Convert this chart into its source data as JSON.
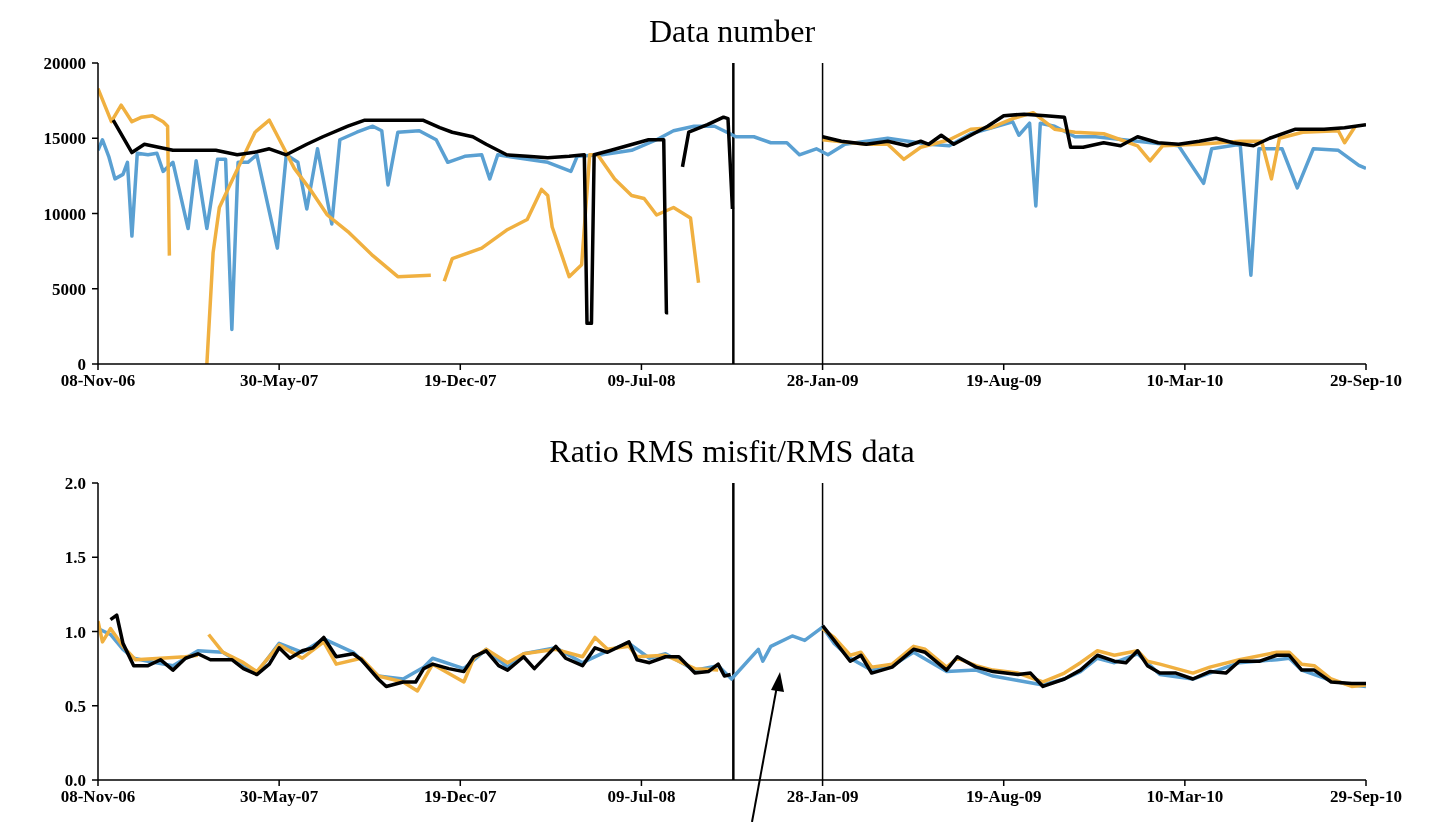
{
  "chart_data": [
    {
      "type": "line",
      "title": "Data number",
      "xlim": [
        "2006-11-08",
        "2010-09-29"
      ],
      "xticks": [
        {
          "value": "2006-11-08",
          "label": "08-Nov-06"
        },
        {
          "value": "2007-05-30",
          "label": "30-May-07"
        },
        {
          "value": "2007-12-19",
          "label": "19-Dec-07"
        },
        {
          "value": "2008-07-09",
          "label": "09-Jul-08"
        },
        {
          "value": "2009-01-28",
          "label": "28-Jan-09"
        },
        {
          "value": "2009-08-19",
          "label": "19-Aug-09"
        },
        {
          "value": "2010-03-10",
          "label": "10-Mar-10"
        },
        {
          "value": "2010-09-29",
          "label": "29-Sep-10"
        }
      ],
      "ylim": [
        0,
        20000
      ],
      "yticks": [
        0,
        5000,
        10000,
        15000,
        20000
      ],
      "ref_lines": [
        {
          "axis": "x",
          "value": "2008-10-20",
          "color": "#000000"
        },
        {
          "axis": "x",
          "value": "2009-01-28",
          "color": "#000000"
        }
      ],
      "series": [
        {
          "color": "#5aa0d2",
          "x": [
            "2006-11-08",
            "2006-11-13",
            "2006-11-20",
            "2006-11-27",
            "2006-12-06",
            "2006-12-11",
            "2006-12-16",
            "2006-12-22",
            "2007-01-03",
            "2007-01-13",
            "2007-01-20",
            "2007-01-31",
            "2007-02-17",
            "2007-02-26",
            "2007-03-10",
            "2007-03-22",
            "2007-03-31",
            "2007-04-07",
            "2007-04-14",
            "2007-04-25",
            "2007-05-05",
            "2007-05-28",
            "2007-06-07",
            "2007-06-20",
            "2007-06-30",
            "2007-07-12",
            "2007-07-28",
            "2007-08-06",
            "2007-08-25",
            "2007-09-12",
            "2007-09-22",
            "2007-09-29",
            "2007-10-10",
            "2007-11-03",
            "2007-11-22",
            "2007-12-05",
            "2007-12-24",
            "2008-01-12",
            "2008-01-21",
            "2008-01-30",
            "2008-03-03",
            "2008-03-26",
            "2008-04-21",
            "2008-04-28",
            "2008-05-26",
            "2008-06-28",
            "2008-07-26",
            "2008-08-14",
            "2008-09-06",
            "2008-09-29",
            "2008-10-23",
            "2008-11-12",
            "2008-12-01",
            "2008-12-19",
            "2009-01-02",
            "2009-01-21",
            "2009-02-03",
            "2009-02-22",
            "2009-04-11",
            "2009-05-27",
            "2009-06-19",
            "2009-07-13",
            "2009-08-29",
            "2009-09-05",
            "2009-09-17",
            "2009-09-24",
            "2009-09-29",
            "2009-10-15",
            "2009-11-07",
            "2009-11-30",
            "2010-01-16",
            "2010-03-03",
            "2010-03-31",
            "2010-04-09",
            "2010-05-11",
            "2010-05-23",
            "2010-06-01",
            "2010-06-27",
            "2010-07-14",
            "2010-08-01",
            "2010-08-29",
            "2010-09-21",
            "2010-09-29"
          ],
          "values": [
            14200,
            14900,
            13800,
            12300,
            12600,
            13400,
            8500,
            14000,
            13900,
            14000,
            12800,
            13400,
            9000,
            13500,
            9000,
            13600,
            13600,
            2300,
            13400,
            13400,
            13900,
            7700,
            13900,
            13400,
            10300,
            14300,
            9300,
            14900,
            15400,
            15800,
            15500,
            11900,
            15400,
            15500,
            14900,
            13400,
            13800,
            13900,
            12300,
            13900,
            13600,
            13400,
            12800,
            13800,
            13900,
            14200,
            14900,
            15500,
            15800,
            15800,
            15100,
            15100,
            14700,
            14700,
            13900,
            14300,
            13900,
            14600,
            15000,
            14600,
            14500,
            15300,
            16100,
            15200,
            16000,
            10500,
            16000,
            15800,
            15100,
            15100,
            14800,
            14500,
            12000,
            14300,
            14600,
            5900,
            14300,
            14300,
            11700,
            14300,
            14200,
            13200,
            13000
          ]
        },
        {
          "color": "#f0b040",
          "x": [
            "2006-11-08",
            "2006-11-23",
            "2006-12-04",
            "2006-12-16",
            "2006-12-27",
            "2007-01-08",
            "2007-01-20",
            "2007-01-25",
            "2007-01-27",
            "2007-02-15",
            "2007-03-10",
            "2007-03-17",
            "2007-03-24",
            "2007-04-08",
            "2007-04-21",
            "2007-05-03",
            "2007-05-19",
            "2007-06-02",
            "2007-06-16",
            "2007-07-05",
            "2007-07-23",
            "2007-08-15",
            "2007-09-12",
            "2007-10-10",
            "2007-11-16",
            "2007-11-24",
            "2007-12-01",
            "2007-12-10",
            "2008-01-12",
            "2008-02-09",
            "2008-03-03",
            "2008-03-19",
            "2008-03-26",
            "2008-03-31",
            "2008-04-19",
            "2008-05-03",
            "2008-05-12",
            "2008-05-21",
            "2008-06-09",
            "2008-06-28",
            "2008-07-12",
            "2008-07-26",
            "2008-08-14",
            "2008-09-02",
            "2008-09-11",
            "2008-12-01",
            "2009-01-28",
            "2009-03-18",
            "2009-04-11",
            "2009-04-29",
            "2009-05-18",
            "2009-06-19",
            "2009-07-13",
            "2009-08-05",
            "2009-08-29",
            "2009-09-21",
            "2009-10-15",
            "2009-11-07",
            "2009-12-09",
            "2009-12-28",
            "2010-01-16",
            "2010-01-30",
            "2010-02-13",
            "2010-03-26",
            "2010-05-11",
            "2010-06-04",
            "2010-06-15",
            "2010-06-24",
            "2010-07-20",
            "2010-08-29",
            "2010-09-05",
            "2010-09-17"
          ],
          "values": [
            18300,
            16100,
            17200,
            16100,
            16400,
            16500,
            16100,
            15800,
            7200,
            null,
            0,
            7400,
            10400,
            12300,
            13900,
            15400,
            16200,
            14600,
            13000,
            11500,
            9900,
            8800,
            7200,
            5800,
            5900,
            null,
            5500,
            7000,
            7700,
            8900,
            9600,
            11600,
            11200,
            9100,
            5800,
            6600,
            13900,
            13900,
            12300,
            11200,
            11000,
            9900,
            10400,
            9700,
            5400,
            null,
            14900,
            14600,
            14600,
            13600,
            14400,
            14900,
            15600,
            15700,
            16300,
            16700,
            15600,
            15400,
            15300,
            14900,
            14500,
            13500,
            14500,
            14600,
            14800,
            14800,
            12300,
            15000,
            15400,
            15500,
            14700,
            15800
          ]
        },
        {
          "color": "#000000",
          "x": [
            "2006-11-25",
            "2006-12-16",
            "2006-12-30",
            "2007-01-31",
            "2007-03-20",
            "2007-04-13",
            "2007-05-05",
            "2007-05-19",
            "2007-06-07",
            "2007-06-30",
            "2007-07-18",
            "2007-08-15",
            "2007-09-03",
            "2007-10-15",
            "2007-11-07",
            "2007-11-26",
            "2007-12-10",
            "2008-01-02",
            "2008-01-17",
            "2008-02-09",
            "2008-03-03",
            "2008-03-26",
            "2008-04-19",
            "2008-05-06",
            "2008-05-09",
            "2008-05-14",
            "2008-05-17",
            "2008-06-05",
            "2008-06-29",
            "2008-07-17",
            "2008-08-03",
            "2008-08-06",
            "2008-08-08",
            "2008-08-16",
            "2008-08-24",
            "2008-08-31",
            "2008-09-21",
            "2008-10-09",
            "2008-10-14",
            "2008-10-19",
            "2008-12-01",
            "2009-01-28",
            "2009-02-18",
            "2009-03-18",
            "2009-04-11",
            "2009-05-03",
            "2009-05-18",
            "2009-05-27",
            "2009-06-10",
            "2009-06-24",
            "2009-07-13",
            "2009-08-01",
            "2009-08-19",
            "2009-09-11",
            "2009-10-05",
            "2009-10-26",
            "2009-11-02",
            "2009-11-16",
            "2009-12-09",
            "2009-12-28",
            "2010-01-16",
            "2010-02-08",
            "2010-03-03",
            "2010-03-26",
            "2010-04-14",
            "2010-05-03",
            "2010-05-26",
            "2010-06-13",
            "2010-07-12",
            "2010-08-13",
            "2010-09-05",
            "2010-09-17",
            "2010-09-29"
          ],
          "values": [
            16200,
            14050,
            14600,
            14200,
            14200,
            13900,
            14100,
            14300,
            13900,
            14600,
            15100,
            15800,
            16200,
            16200,
            16200,
            15700,
            15400,
            15100,
            14600,
            13900,
            13800,
            13700,
            13800,
            13900,
            2700,
            2700,
            13900,
            14200,
            14600,
            14900,
            14900,
            3400,
            3400,
            null,
            13100,
            15400,
            15900,
            16400,
            16300,
            10300,
            null,
            15100,
            14800,
            14600,
            14800,
            14500,
            14800,
            14600,
            15200,
            14600,
            15200,
            15800,
            16500,
            16600,
            16500,
            16400,
            14400,
            14400,
            14700,
            14500,
            15100,
            14700,
            14600,
            14800,
            15000,
            14700,
            14500,
            15000,
            15600,
            15600,
            15700,
            15800,
            15900
          ]
        }
      ]
    },
    {
      "type": "line",
      "title": "Ratio RMS misfit/RMS data",
      "xlim": [
        "2006-11-08",
        "2010-09-29"
      ],
      "xticks": [
        {
          "value": "2006-11-08",
          "label": "08-Nov-06"
        },
        {
          "value": "2007-05-30",
          "label": "30-May-07"
        },
        {
          "value": "2007-12-19",
          "label": "19-Dec-07"
        },
        {
          "value": "2008-07-09",
          "label": "09-Jul-08"
        },
        {
          "value": "2009-01-28",
          "label": "28-Jan-09"
        },
        {
          "value": "2009-08-19",
          "label": "19-Aug-09"
        },
        {
          "value": "2010-03-10",
          "label": "10-Mar-10"
        },
        {
          "value": "2010-09-29",
          "label": "29-Sep-10"
        }
      ],
      "ylim": [
        0,
        2
      ],
      "yticks": [
        {
          "value": 0,
          "label": "0.0"
        },
        {
          "value": 0.5,
          "label": "0.5"
        },
        {
          "value": 1,
          "label": "1.0"
        },
        {
          "value": 1.5,
          "label": "1.5"
        },
        {
          "value": 2,
          "label": "2.0"
        }
      ],
      "ref_lines": [
        {
          "axis": "x",
          "value": "2008-10-20",
          "color": "#000000"
        },
        {
          "axis": "x",
          "value": "2009-01-28",
          "color": "#000000"
        }
      ],
      "series": [
        {
          "color": "#5aa0d2",
          "x": [
            "2006-11-08",
            "2006-11-22",
            "2006-12-06",
            "2006-12-18",
            "2007-01-03",
            "2007-01-31",
            "2007-02-28",
            "2007-03-28",
            "2007-04-20",
            "2007-05-05",
            "2007-05-30",
            "2007-06-25",
            "2007-07-19",
            "2007-08-21",
            "2007-09-18",
            "2007-10-16",
            "2007-11-08",
            "2007-11-18",
            "2007-12-23",
            "2008-01-17",
            "2008-02-10",
            "2008-02-28",
            "2008-04-04",
            "2008-05-04",
            "2008-06-01",
            "2008-06-25",
            "2008-07-18",
            "2008-08-05",
            "2008-09-07",
            "2008-10-03",
            "2008-10-18",
            "2008-11-17",
            "2008-11-22",
            "2008-12-01",
            "2008-12-25",
            "2009-01-08",
            "2009-01-28",
            "2009-02-10",
            "2009-02-28",
            "2009-03-24",
            "2009-04-16",
            "2009-05-10",
            "2009-06-16",
            "2009-07-19",
            "2009-08-07",
            "2009-09-04",
            "2009-10-02",
            "2009-10-26",
            "2009-11-13",
            "2009-12-02",
            "2009-12-21",
            "2010-01-16",
            "2010-02-10",
            "2010-03-19",
            "2010-04-07",
            "2010-05-10",
            "2010-06-21",
            "2010-07-05",
            "2010-07-19",
            "2010-08-21",
            "2010-09-13",
            "2010-09-29"
          ],
          "values": [
            1.02,
            0.98,
            0.88,
            0.82,
            0.8,
            0.77,
            0.87,
            0.86,
            0.77,
            0.72,
            0.92,
            0.86,
            0.95,
            0.86,
            0.7,
            0.68,
            0.76,
            0.82,
            0.75,
            0.88,
            0.76,
            0.85,
            0.89,
            0.79,
            0.87,
            0.92,
            0.82,
            0.85,
            0.74,
            0.77,
            0.68,
            0.88,
            0.8,
            0.9,
            0.97,
            0.94,
            1.03,
            0.92,
            0.82,
            0.74,
            0.77,
            0.86,
            0.73,
            0.74,
            0.7,
            0.67,
            0.64,
            0.68,
            0.73,
            0.82,
            0.79,
            0.85,
            0.71,
            0.68,
            0.72,
            0.79,
            0.81,
            0.82,
            0.74,
            0.67,
            0.64,
            0.63
          ]
        },
        {
          "color": "#f0b040",
          "x": [
            "2006-11-08",
            "2006-11-13",
            "2006-11-22",
            "2006-12-06",
            "2006-12-20",
            "2007-01-17",
            "2007-02-14",
            "2007-02-28",
            "2007-03-05",
            "2007-03-12",
            "2007-03-28",
            "2007-04-20",
            "2007-05-05",
            "2007-05-30",
            "2007-06-25",
            "2007-07-19",
            "2007-08-02",
            "2007-08-30",
            "2007-09-18",
            "2007-10-16",
            "2007-11-01",
            "2007-11-18",
            "2007-12-23",
            "2008-01-03",
            "2008-01-17",
            "2008-02-10",
            "2008-02-28",
            "2008-04-04",
            "2008-05-04",
            "2008-05-18",
            "2008-06-01",
            "2008-06-25",
            "2008-07-04",
            "2008-08-05",
            "2008-09-07",
            "2008-10-03",
            "2008-12-01",
            "2009-01-28",
            "2009-02-10",
            "2009-02-28",
            "2009-03-12",
            "2009-03-24",
            "2009-04-16",
            "2009-05-10",
            "2009-05-23",
            "2009-06-16",
            "2009-06-28",
            "2009-07-19",
            "2009-08-07",
            "2009-09-04",
            "2009-10-02",
            "2009-10-26",
            "2009-11-13",
            "2009-12-02",
            "2009-12-21",
            "2010-01-16",
            "2010-01-27",
            "2010-02-10",
            "2010-03-19",
            "2010-04-07",
            "2010-05-10",
            "2010-06-21",
            "2010-07-05",
            "2010-07-19",
            "2010-08-02",
            "2010-08-21",
            "2010-09-13",
            "2010-09-29"
          ],
          "values": [
            1.07,
            0.93,
            1.02,
            0.9,
            0.81,
            0.82,
            0.83,
            0.84,
            null,
            0.98,
            0.86,
            0.79,
            0.73,
            0.91,
            0.82,
            0.93,
            0.78,
            0.82,
            0.7,
            0.66,
            0.6,
            0.78,
            0.66,
            0.82,
            0.88,
            0.79,
            0.85,
            0.88,
            0.83,
            0.96,
            0.88,
            0.9,
            0.83,
            0.84,
            0.75,
            0.74,
            null,
            1.02,
            0.96,
            0.84,
            0.86,
            0.76,
            0.78,
            0.9,
            0.88,
            0.76,
            0.82,
            0.77,
            0.74,
            0.72,
            0.66,
            0.72,
            0.79,
            0.87,
            0.84,
            0.87,
            0.8,
            0.78,
            0.72,
            0.76,
            0.81,
            0.86,
            0.86,
            0.78,
            0.77,
            0.68,
            0.63,
            0.64
          ]
        },
        {
          "color": "#000000",
          "x": [
            "2006-11-22",
            "2006-11-29",
            "2006-12-06",
            "2006-12-18",
            "2007-01-03",
            "2007-01-17",
            "2007-01-31",
            "2007-02-14",
            "2007-02-28",
            "2007-03-14",
            "2007-04-07",
            "2007-04-20",
            "2007-05-05",
            "2007-05-19",
            "2007-05-30",
            "2007-06-11",
            "2007-06-25",
            "2007-07-07",
            "2007-07-19",
            "2007-08-02",
            "2007-08-21",
            "2007-08-30",
            "2007-09-18",
            "2007-09-27",
            "2007-10-16",
            "2007-10-30",
            "2007-11-08",
            "2007-11-18",
            "2007-12-06",
            "2007-12-23",
            "2008-01-03",
            "2008-01-17",
            "2008-01-31",
            "2008-02-10",
            "2008-02-28",
            "2008-03-11",
            "2008-04-04",
            "2008-04-15",
            "2008-05-04",
            "2008-05-18",
            "2008-06-01",
            "2008-06-25",
            "2008-07-04",
            "2008-07-18",
            "2008-08-05",
            "2008-08-20",
            "2008-09-07",
            "2008-09-22",
            "2008-10-03",
            "2008-10-10",
            "2008-10-17",
            "2008-12-01",
            "2009-01-28",
            "2009-02-10",
            "2009-02-28",
            "2009-03-12",
            "2009-03-24",
            "2009-04-16",
            "2009-05-10",
            "2009-05-23",
            "2009-06-16",
            "2009-06-28",
            "2009-07-19",
            "2009-08-07",
            "2009-09-04",
            "2009-09-18",
            "2009-10-02",
            "2009-10-26",
            "2009-11-13",
            "2009-12-02",
            "2009-12-21",
            "2010-01-03",
            "2010-01-16",
            "2010-01-27",
            "2010-02-10",
            "2010-02-28",
            "2010-03-19",
            "2010-04-07",
            "2010-04-25",
            "2010-05-10",
            "2010-06-02",
            "2010-06-21",
            "2010-07-05",
            "2010-07-19",
            "2010-08-02",
            "2010-08-21",
            "2010-09-13",
            "2010-09-29"
          ],
          "values": [
            1.08,
            1.11,
            0.92,
            0.77,
            0.77,
            0.81,
            0.74,
            0.82,
            0.85,
            0.81,
            0.81,
            0.75,
            0.71,
            0.78,
            0.89,
            0.82,
            0.87,
            0.89,
            0.96,
            0.83,
            0.85,
            0.81,
            0.68,
            0.63,
            0.66,
            0.66,
            0.75,
            0.78,
            0.75,
            0.73,
            0.83,
            0.87,
            0.77,
            0.74,
            0.83,
            0.75,
            0.9,
            0.82,
            0.77,
            0.89,
            0.86,
            0.93,
            0.81,
            0.79,
            0.83,
            0.83,
            0.72,
            0.73,
            0.78,
            0.7,
            0.71,
            null,
            1.04,
            0.94,
            0.8,
            0.84,
            0.72,
            0.76,
            0.88,
            0.86,
            0.74,
            0.83,
            0.76,
            0.73,
            0.71,
            0.72,
            0.63,
            0.68,
            0.74,
            0.84,
            0.8,
            0.79,
            0.87,
            0.77,
            0.72,
            0.72,
            0.68,
            0.73,
            0.72,
            0.8,
            0.8,
            0.84,
            0.84,
            0.74,
            0.74,
            0.66,
            0.65,
            0.65
          ]
        }
      ]
    }
  ]
}
